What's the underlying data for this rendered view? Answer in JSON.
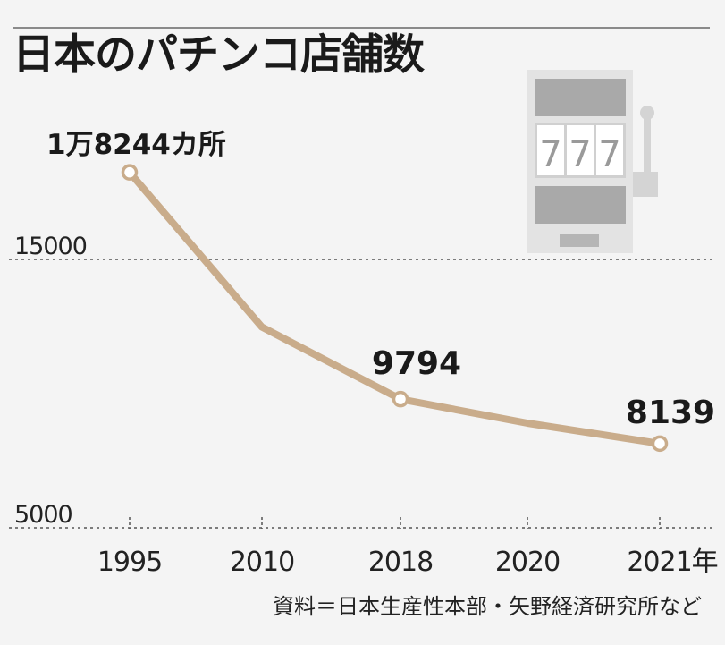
{
  "chart_data": {
    "type": "line",
    "title": "日本のパチンコ店舗数",
    "categories": [
      "1995",
      "2010",
      "2018",
      "2020",
      "2021年"
    ],
    "values": [
      18244,
      12480,
      9794,
      8900,
      8139
    ],
    "point_markers": [
      true,
      false,
      true,
      false,
      true
    ],
    "data_labels": [
      "1万8244カ所",
      "",
      "9794",
      "",
      "8139"
    ],
    "y_ticks": [
      5000,
      15000
    ],
    "ylim": [
      5000,
      20000
    ],
    "grid": "dotted horizontal at tick values",
    "line_color": "#c9ac8b",
    "source": "資料＝日本生産性本部・矢野経済研究所など"
  },
  "illustration": {
    "name": "slot-machine-icon",
    "reels": [
      "7",
      "7",
      "7"
    ],
    "body_color": "#e3e3e3",
    "panel_color": "#a9a9a9"
  }
}
